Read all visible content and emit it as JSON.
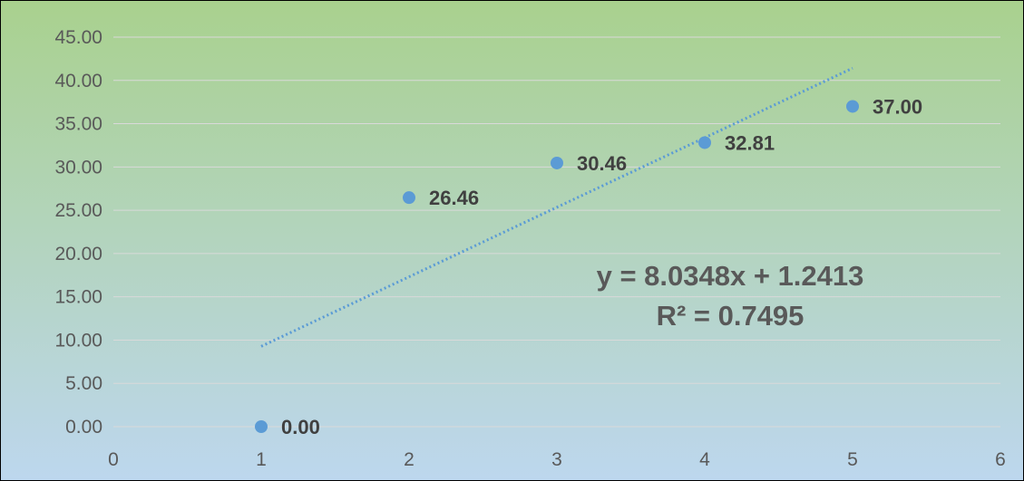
{
  "chart_data": {
    "type": "scatter",
    "x": [
      1,
      2,
      3,
      4,
      5
    ],
    "y": [
      0.0,
      26.46,
      30.46,
      32.81,
      37.0
    ],
    "data_labels": [
      "0.00",
      "26.46",
      "30.46",
      "32.81",
      "37.00"
    ],
    "xlim": [
      0,
      6
    ],
    "ylim": [
      0,
      45
    ],
    "x_ticks": [
      0,
      1,
      2,
      3,
      4,
      5,
      6
    ],
    "x_tick_labels": [
      "0",
      "1",
      "2",
      "3",
      "4",
      "5",
      "6"
    ],
    "y_ticks": [
      0,
      5,
      10,
      15,
      20,
      25,
      30,
      35,
      40,
      45
    ],
    "y_tick_labels": [
      "0.00",
      "5.00",
      "10.00",
      "15.00",
      "20.00",
      "25.00",
      "30.00",
      "35.00",
      "40.00",
      "45.00"
    ],
    "grid": "horizontal",
    "trendline": {
      "type": "linear",
      "slope": 8.0348,
      "intercept": 1.2413,
      "r_squared": 0.7495,
      "x_range": [
        1,
        5
      ],
      "equation_text": "y = 8.0348x + 1.2413",
      "r2_text": "R² = 0.7495"
    },
    "title": "",
    "xlabel": "",
    "ylabel": ""
  },
  "colors": {
    "marker": "#5b9bd5",
    "trendline": "#5b9bd5",
    "gridline": "#d9d9d9",
    "background_top": "#a9d18e",
    "background_bottom": "#bdd7ee"
  }
}
